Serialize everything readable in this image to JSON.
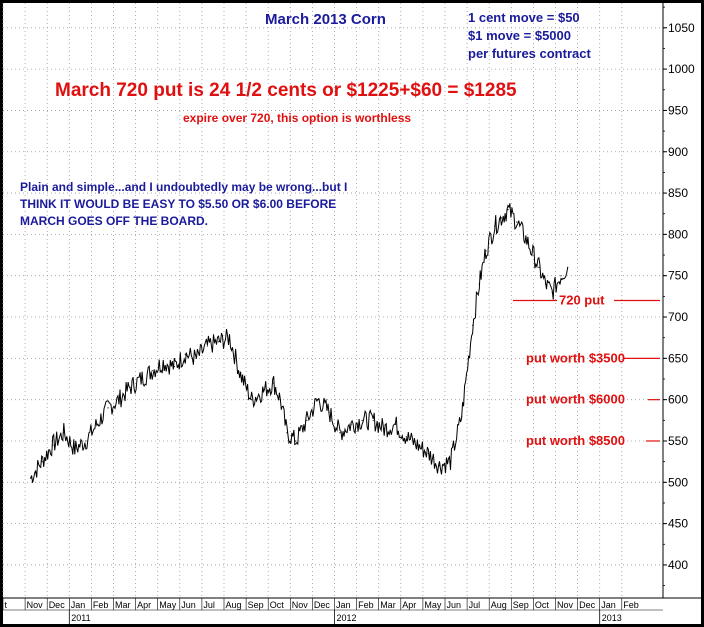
{
  "chart_data": {
    "type": "line",
    "title": "March 2013 Corn",
    "xlabel": "",
    "ylabel": "",
    "ylim": [
      360,
      1080
    ],
    "y_ticks": [
      "1050",
      "1000",
      "950",
      "900",
      "850",
      "800",
      "750",
      "700",
      "650",
      "600",
      "550",
      "500",
      "450",
      "400"
    ],
    "x_months": [
      "t",
      "Nov",
      "Dec",
      "Jan",
      "Feb",
      "Mar",
      "Apr",
      "May",
      "Jun",
      "Jul",
      "Aug",
      "Sep",
      "Oct",
      "Nov",
      "Dec",
      "Jan",
      "Feb",
      "Mar",
      "Apr",
      "May",
      "Jun",
      "Jul",
      "Aug",
      "Sep",
      "Oct",
      "Nov",
      "Dec",
      "Jan",
      "Feb"
    ],
    "x_years": [
      "2011",
      "2012",
      "2013"
    ],
    "grid": true,
    "series": [
      {
        "x": [
          0,
          0.5,
          1,
          1.5,
          2,
          2.5,
          3,
          3.5,
          4,
          4.5,
          5,
          5.5,
          6,
          6.5,
          7,
          7.5,
          8,
          8.5,
          9,
          9.5,
          10,
          10.5,
          11,
          11.3,
          11.6,
          12,
          12.5,
          13,
          13.5,
          14,
          14.5,
          15,
          15.5,
          16,
          16.5,
          17,
          17.5,
          18,
          18.5,
          19,
          19.5,
          20,
          20.3,
          20.6,
          21,
          21.3,
          21.6,
          22,
          22.5,
          23,
          23.3,
          23.6,
          24,
          24.3
        ],
        "values": [
          505,
          525,
          545,
          560,
          540,
          550,
          570,
          590,
          600,
          615,
          625,
          635,
          645,
          640,
          655,
          650,
          665,
          670,
          675,
          630,
          600,
          610,
          620,
          600,
          560,
          550,
          575,
          600,
          585,
          560,
          570,
          575,
          575,
          565,
          570,
          555,
          545,
          535,
          520,
          525,
          580,
          690,
          740,
          780,
          810,
          820,
          830,
          815,
          790,
          760,
          740,
          730,
          750,
          760
        ]
      }
    ],
    "annotations": [
      "1 cent move = $50",
      "$1 move = $5000",
      "per futures contract",
      "March 720 put is 24 1/2 cents or $1225+$60 = $1285",
      "expire over 720, this option is worthless",
      "Plain and simple...and I undoubtedly may be wrong...but I",
      "THINK IT WOULD BE EASY TO $5.50 OR $6.00 BEFORE",
      "MARCH GOES OFF THE BOARD."
    ],
    "levels": [
      {
        "label": "720 put",
        "value": 720
      },
      {
        "label": "put worth $3500",
        "value": 650
      },
      {
        "label": "put worth $6000",
        "value": 600
      },
      {
        "label": "put worth $8500",
        "value": 550
      }
    ]
  },
  "colors": {
    "frame": "#000000",
    "plot_background": "#ffffff",
    "price": "#000000",
    "blue_text": "#1a1a9c",
    "red_text": "#e01010"
  }
}
